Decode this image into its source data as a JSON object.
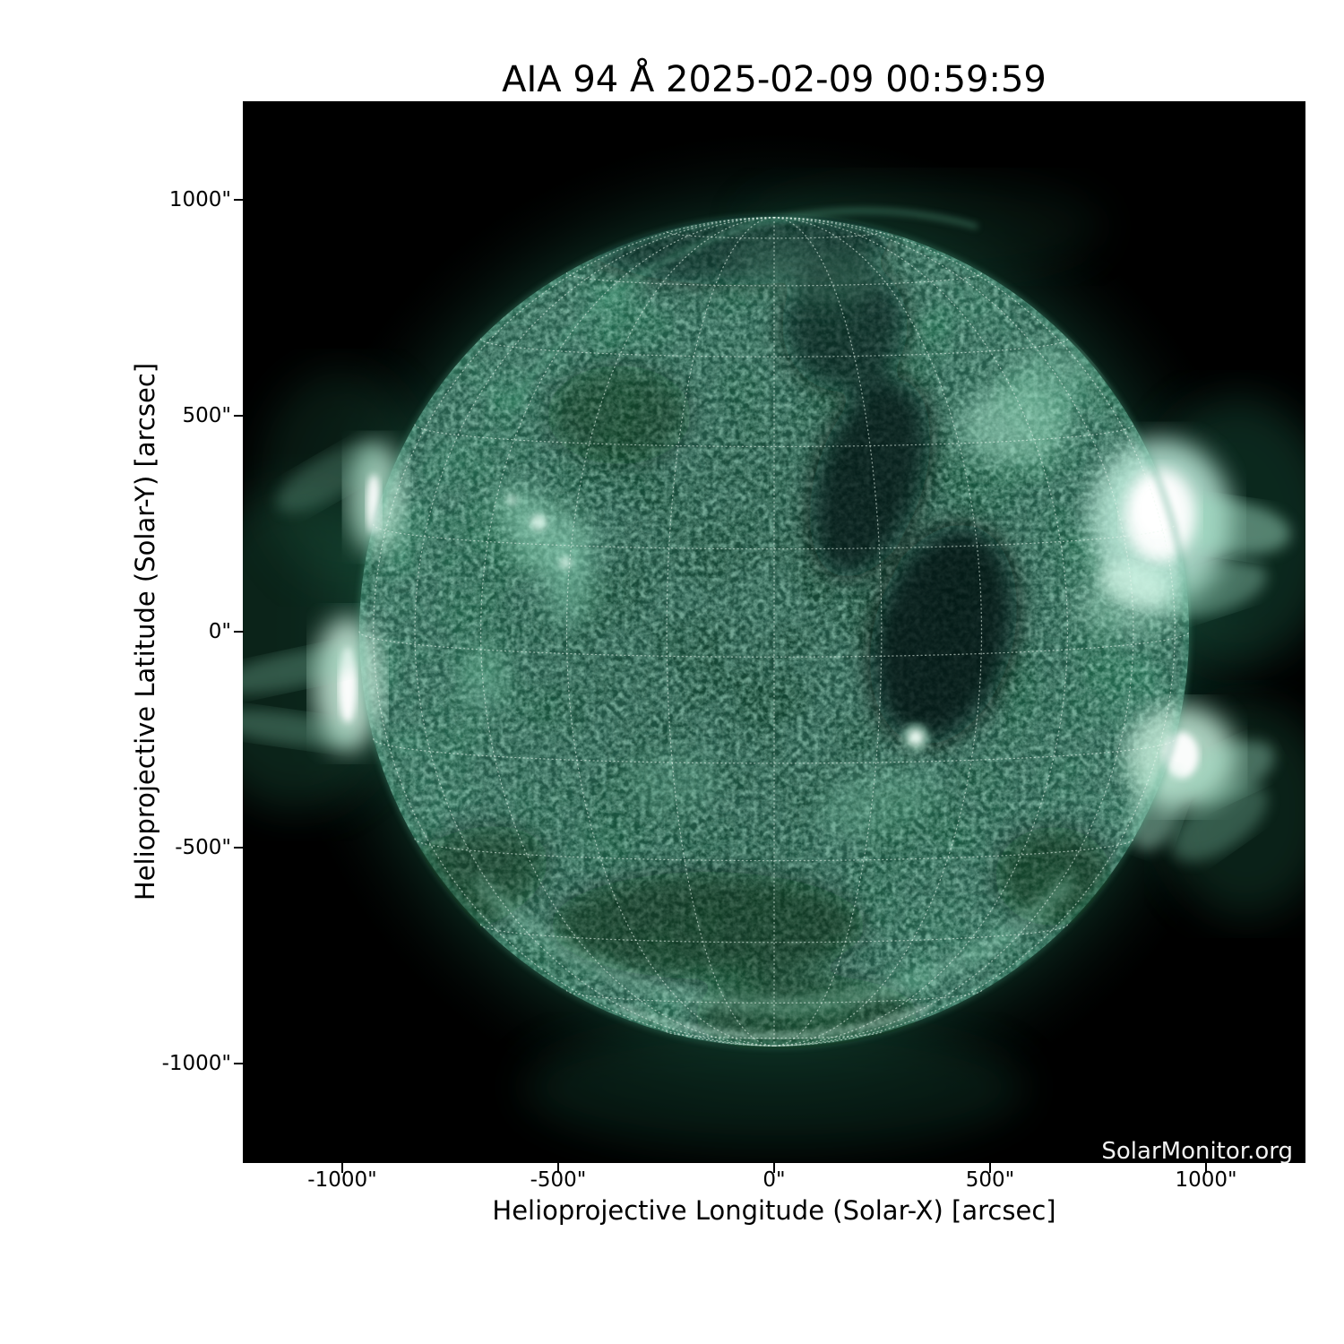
{
  "figure": {
    "title": "AIA 94 Å 2025-02-09 00:59:59",
    "watermark": "SolarMonitor.org"
  },
  "x_axis": {
    "label": "Helioprojective Longitude (Solar-X) [arcsec]",
    "ticks": [
      {
        "label": "-1000\""
      },
      {
        "label": "-500\""
      },
      {
        "label": "0\""
      },
      {
        "label": "500\""
      },
      {
        "label": "1000\""
      }
    ]
  },
  "y_axis": {
    "label": "Helioprojective Latitude (Solar-Y) [arcsec]",
    "ticks": [
      {
        "label": "1000\""
      },
      {
        "label": "500\""
      },
      {
        "label": "0\""
      },
      {
        "label": "-500\""
      },
      {
        "label": "-1000\""
      }
    ]
  },
  "colors": {
    "page_background": "#ffffff",
    "plot_background": "#000000",
    "axis_text": "#000000",
    "watermark_text": "#f2f2f2",
    "disk_dark_green": "#0a2f21",
    "disk_mid_green": "#1d5c43",
    "disk_bright_green": "#8fd6ba",
    "active_region_core": "#ffffff",
    "graticule": "#e9f7ef"
  },
  "chart_data": {
    "type": "heatmap",
    "subtype": "solar EUV full-disk image with heliographic graticule overlay",
    "title": "AIA 94 Å 2025-02-09 00:59:59",
    "instrument": "AIA",
    "wavelength": "94 Å",
    "observation_time": "2025-02-09 00:59:59",
    "xlabel": "Helioprojective Longitude (Solar-X) [arcsec]",
    "ylabel": "Helioprojective Latitude (Solar-Y) [arcsec]",
    "xlim": [
      -1230,
      1230
    ],
    "ylim": [
      -1230,
      1230
    ],
    "x_ticks_arcsec": [
      -1000,
      -500,
      0,
      500,
      1000
    ],
    "y_ticks_arcsec": [
      -1000,
      -500,
      0,
      500,
      1000
    ],
    "grid": "heliographic graticule, dotted white lines, 15 degree spacing",
    "legend": "none",
    "colormap": "dark teal-green (AIA 94) with white saturated cores",
    "solar_disk": {
      "center_arcsec": [
        0,
        0
      ],
      "radius_arcsec": 960
    },
    "features": [
      {
        "name": "major active region at west limb",
        "x_arcsec": 895,
        "y_arcsec": 270,
        "brightness": "saturated white core with extended loop glow beyond limb"
      },
      {
        "name": "active region at southwest limb",
        "x_arcsec": 940,
        "y_arcsec": -285,
        "brightness": "bright white core with loops extending past limb"
      },
      {
        "name": "east limb brightening",
        "x_arcsec": -990,
        "y_arcsec": -125,
        "brightness": "bright limb streak with faint coronal rays"
      },
      {
        "name": "northeast limb brightening",
        "x_arcsec": -920,
        "y_arcsec": 310,
        "brightness": "bright thin limb streak with glow"
      },
      {
        "name": "bright moss / loop cluster east of center",
        "x_arcsec": -505,
        "y_arcsec": 195,
        "brightness": "moderate"
      },
      {
        "name": "compact loop system west of center",
        "x_arcsec": 550,
        "y_arcsec": 490,
        "brightness": "moderate bright loops"
      },
      {
        "name": "compact bright point south-west of center",
        "x_arcsec": 330,
        "y_arcsec": -245,
        "brightness": "small bright kernel"
      },
      {
        "name": "dark coronal hole region west of disk center",
        "x_arcsec": 300,
        "y_arcsec": 220,
        "brightness": "dark"
      },
      {
        "name": "south limb rim brightening",
        "x_arcsec": 0,
        "y_arcsec": -960,
        "brightness": "bright thin rim arc"
      }
    ]
  }
}
